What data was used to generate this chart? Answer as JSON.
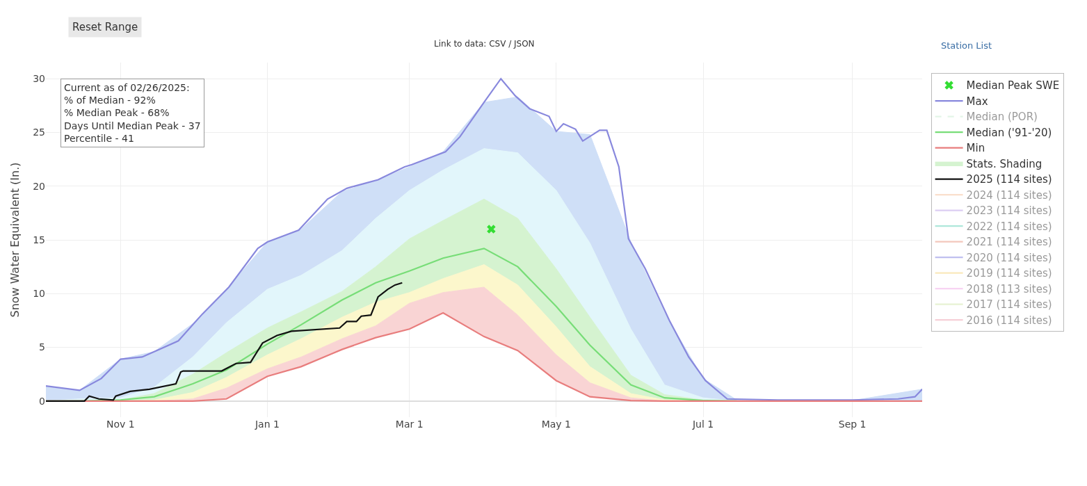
{
  "chart_data": {
    "type": "line",
    "ylabel": "Snow Water Equivalent (In.)",
    "annotations": [
      "Reset Range",
      "Link to data: CSV / JSON",
      "Station List",
      "Current as of 02/26/2025:\n% of Median - 92%\n% Median Peak - 68%\nDays Until Median Peak - 37\nPercentile - 41"
    ],
    "x": [
      "2024-10-01",
      "2024-10-15",
      "2024-11-01",
      "2024-11-15",
      "2024-12-01",
      "2024-12-15",
      "2025-01-01",
      "2025-01-15",
      "2025-02-01",
      "2025-02-15",
      "2025-03-01",
      "2025-03-15",
      "2025-04-01",
      "2025-04-15",
      "2025-05-01",
      "2025-05-15",
      "2025-06-01",
      "2025-06-15",
      "2025-07-01",
      "2025-07-15",
      "2025-08-01",
      "2025-09-01",
      "2025-09-30"
    ],
    "xlim": [
      "2024-10-01",
      "2025-09-30"
    ],
    "xticks": [
      {
        "value": "2024-11-01",
        "label": "Nov 1"
      },
      {
        "value": "2025-01-01",
        "label": "Jan 1"
      },
      {
        "value": "2025-03-01",
        "label": "Mar 1"
      },
      {
        "value": "2025-05-01",
        "label": "May 1"
      },
      {
        "value": "2025-07-01",
        "label": "Jul 1"
      },
      {
        "value": "2025-09-01",
        "label": "Sep 1"
      }
    ],
    "ylim": [
      -1.5,
      31.5
    ],
    "yticks": [
      0,
      5,
      10,
      15,
      20,
      25,
      30
    ],
    "grid": true,
    "legend": "right",
    "series": [
      {
        "name": "Median Peak SWE",
        "type": "scatter",
        "marker": "cross",
        "color": "#33dd33",
        "x": [
          "2025-04-04"
        ],
        "values": [
          16.0
        ]
      },
      {
        "name": "Max",
        "color": "#8888dd",
        "x": [
          "2024-10-01",
          "2024-10-15",
          "2024-10-24",
          "2024-11-01",
          "2024-11-10",
          "2024-11-16",
          "2024-11-25",
          "2024-12-05",
          "2024-12-16",
          "2024-12-28",
          "2025-01-01",
          "2025-01-14",
          "2025-01-26",
          "2025-02-03",
          "2025-02-16",
          "2025-02-27",
          "2025-03-02",
          "2025-03-16",
          "2025-03-22",
          "2025-04-01",
          "2025-04-08",
          "2025-04-14",
          "2025-04-20",
          "2025-04-28",
          "2025-05-01",
          "2025-05-04",
          "2025-05-09",
          "2025-05-12",
          "2025-05-19",
          "2025-05-22",
          "2025-05-27",
          "2025-05-31",
          "2025-06-07",
          "2025-06-17",
          "2025-06-25",
          "2025-07-02",
          "2025-07-11",
          "2025-08-01",
          "2025-09-01",
          "2025-09-20",
          "2025-09-27",
          "2025-09-30"
        ],
        "values": [
          1.4,
          1.0,
          2.1,
          3.9,
          4.1,
          4.7,
          5.6,
          8.1,
          10.6,
          14.2,
          14.8,
          15.9,
          18.8,
          19.8,
          20.6,
          21.8,
          22.0,
          23.2,
          24.6,
          27.8,
          30.0,
          28.4,
          27.2,
          26.5,
          25.1,
          25.8,
          25.3,
          24.2,
          25.2,
          25.2,
          21.8,
          15.1,
          12.3,
          7.5,
          4.1,
          1.9,
          0.2,
          0.1,
          0.1,
          0.2,
          0.4,
          1.1
        ]
      },
      {
        "name": "Median (POR)",
        "color": "#c8ecd0",
        "line_style": "dashed",
        "values": [
          null,
          null,
          null,
          null,
          null,
          null,
          null,
          null,
          null,
          null,
          null,
          null,
          null,
          null,
          null,
          null,
          null,
          null,
          null,
          null,
          null,
          null,
          null
        ]
      },
      {
        "name": "Median ('91-'20)",
        "color": "#77dd77",
        "values": [
          0,
          0,
          0.1,
          0.4,
          1.6,
          2.9,
          5.3,
          7.1,
          9.4,
          11.0,
          12.1,
          13.3,
          14.2,
          12.5,
          8.8,
          5.2,
          1.5,
          0.3,
          0.05,
          0,
          null,
          null,
          null
        ]
      },
      {
        "name": "Min",
        "color": "#e87d7d",
        "values": [
          0,
          0,
          0,
          0,
          0,
          0.2,
          2.3,
          3.2,
          4.8,
          5.9,
          6.7,
          8.2,
          6.0,
          4.7,
          1.9,
          0.4,
          0.05,
          0,
          0,
          0,
          0,
          0,
          0
        ]
      },
      {
        "type": "area",
        "color": "#f9d4d4",
        "values": [
          0,
          0,
          0,
          0,
          0.2,
          1.2,
          3.0,
          4.1,
          5.8,
          7.0,
          9.1,
          10.1,
          10.6,
          8.0,
          4.3,
          1.7,
          0.3,
          0,
          0,
          0,
          0,
          0,
          0
        ]
      },
      {
        "type": "area",
        "color": "#fcf7cc",
        "values": [
          0,
          0,
          0,
          0.1,
          0.8,
          2.2,
          4.3,
          5.8,
          7.8,
          9.2,
          10.1,
          11.4,
          12.7,
          10.8,
          6.9,
          3.2,
          0.7,
          0.1,
          0,
          0,
          0,
          0,
          0
        ]
      },
      {
        "name": "Stats. Shading",
        "type": "area",
        "color": "#d5f3d0",
        "values": [
          0,
          0,
          0.1,
          0.7,
          2.5,
          4.5,
          6.8,
          8.3,
          10.2,
          12.5,
          15.1,
          16.8,
          18.8,
          17.0,
          12.3,
          7.8,
          2.4,
          0.6,
          0.1,
          0,
          0,
          0,
          0
        ]
      },
      {
        "type": "area",
        "color": "#e2f6fb",
        "values": [
          0,
          0.2,
          0.3,
          1.3,
          4.1,
          7.3,
          10.4,
          11.7,
          14.0,
          17.0,
          19.6,
          21.5,
          23.5,
          23.1,
          19.6,
          14.7,
          6.7,
          1.5,
          0.3,
          0,
          0,
          0,
          0
        ]
      },
      {
        "type": "area",
        "color": "#cfdff7",
        "values": [
          1.4,
          1.0,
          3.9,
          4.6,
          7.2,
          10.4,
          14.8,
          16.0,
          19.5,
          20.5,
          21.8,
          23.2,
          27.8,
          28.3,
          25.1,
          24.8,
          14.8,
          8.2,
          2.1,
          0.1,
          0.05,
          0.05,
          1.1
        ]
      },
      {
        "name": "2025 (114 sites)",
        "color": "#111111",
        "x": [
          "2024-10-01",
          "2024-10-17",
          "2024-10-19",
          "2024-10-23",
          "2024-10-29",
          "2024-10-30",
          "2024-11-05",
          "2024-11-13",
          "2024-11-24",
          "2024-11-26",
          "2024-11-27",
          "2024-12-13",
          "2024-12-19",
          "2024-12-25",
          "2024-12-30",
          "2025-01-05",
          "2025-01-11",
          "2025-01-31",
          "2025-02-03",
          "2025-02-07",
          "2025-02-09",
          "2025-02-13",
          "2025-02-16",
          "2025-02-20",
          "2025-02-23",
          "2025-02-26"
        ],
        "values": [
          0,
          0,
          0.46,
          0.2,
          0.1,
          0.46,
          0.9,
          1.1,
          1.6,
          2.7,
          2.8,
          2.8,
          3.5,
          3.6,
          5.4,
          6.1,
          6.5,
          6.8,
          7.4,
          7.4,
          7.9,
          8.0,
          9.7,
          10.4,
          10.8,
          11.0
        ]
      },
      {
        "name": "2024 (114 sites)",
        "color": "#f5c09a",
        "values": [
          null,
          null,
          null,
          null,
          null,
          null,
          null,
          null,
          null,
          null,
          null,
          null,
          null,
          null,
          null,
          null,
          null,
          null,
          null,
          null,
          null,
          null,
          null
        ]
      },
      {
        "name": "2023 (114 sites)",
        "color": "#b99ce8",
        "values": [
          null,
          null,
          null,
          null,
          null,
          null,
          null,
          null,
          null,
          null,
          null,
          null,
          null,
          null,
          null,
          null,
          null,
          null,
          null,
          null,
          null,
          null,
          null
        ]
      },
      {
        "name": "2022 (114 sites)",
        "color": "#5fd0b8",
        "values": [
          null,
          null,
          null,
          null,
          null,
          null,
          null,
          null,
          null,
          null,
          null,
          null,
          null,
          null,
          null,
          null,
          null,
          null,
          null,
          null,
          null,
          null,
          null
        ]
      },
      {
        "name": "2021 (114 sites)",
        "color": "#e8907a",
        "values": [
          null,
          null,
          null,
          null,
          null,
          null,
          null,
          null,
          null,
          null,
          null,
          null,
          null,
          null,
          null,
          null,
          null,
          null,
          null,
          null,
          null,
          null,
          null
        ]
      },
      {
        "name": "2020 (114 sites)",
        "color": "#8080e0",
        "values": [
          null,
          null,
          null,
          null,
          null,
          null,
          null,
          null,
          null,
          null,
          null,
          null,
          null,
          null,
          null,
          null,
          null,
          null,
          null,
          null,
          null,
          null,
          null
        ]
      },
      {
        "name": "2019 (114 sites)",
        "color": "#f5d47a",
        "values": [
          null,
          null,
          null,
          null,
          null,
          null,
          null,
          null,
          null,
          null,
          null,
          null,
          null,
          null,
          null,
          null,
          null,
          null,
          null,
          null,
          null,
          null,
          null
        ]
      },
      {
        "name": "2018 (113 sites)",
        "color": "#f0a8e8",
        "values": [
          null,
          null,
          null,
          null,
          null,
          null,
          null,
          null,
          null,
          null,
          null,
          null,
          null,
          null,
          null,
          null,
          null,
          null,
          null,
          null,
          null,
          null,
          null
        ]
      },
      {
        "name": "2017 (114 sites)",
        "color": "#cfe6a8",
        "values": [
          null,
          null,
          null,
          null,
          null,
          null,
          null,
          null,
          null,
          null,
          null,
          null,
          null,
          null,
          null,
          null,
          null,
          null,
          null,
          null,
          null,
          null,
          null
        ]
      },
      {
        "name": "2016 (114 sites)",
        "color": "#eea0b0",
        "values": [
          null,
          null,
          null,
          null,
          null,
          null,
          null,
          null,
          null,
          null,
          null,
          null,
          null,
          null,
          null,
          null,
          null,
          null,
          null,
          null,
          null,
          null,
          null
        ]
      }
    ]
  }
}
